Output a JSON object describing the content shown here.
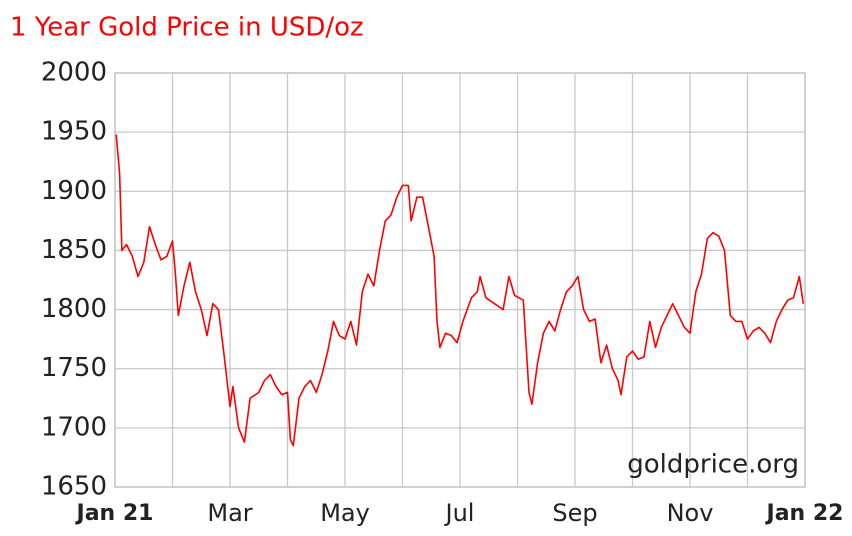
{
  "chart_data": {
    "type": "line",
    "title": "1 Year Gold Price in USD/oz",
    "watermark": "goldprice.org",
    "xlim": [
      0,
      12
    ],
    "xticks": [
      {
        "value": 0,
        "label": "Jan 21"
      },
      {
        "value": 1,
        "label": null
      },
      {
        "value": 2,
        "label": "Mar"
      },
      {
        "value": 3,
        "label": null
      },
      {
        "value": 4,
        "label": "May"
      },
      {
        "value": 5,
        "label": null
      },
      {
        "value": 6,
        "label": "Jul"
      },
      {
        "value": 7,
        "label": null
      },
      {
        "value": 8,
        "label": "Sep"
      },
      {
        "value": 9,
        "label": null
      },
      {
        "value": 10,
        "label": "Nov"
      },
      {
        "value": 11,
        "label": null
      },
      {
        "value": 12,
        "label": "Jan 22"
      }
    ],
    "ylim": [
      1650,
      2000
    ],
    "yticks": [
      1650,
      1700,
      1750,
      1800,
      1850,
      1900,
      1950,
      2000
    ],
    "grid": true,
    "series": [
      {
        "color": "#ff0000",
        "x": [
          0.02,
          0.08,
          0.12,
          0.2,
          0.3,
          0.4,
          0.5,
          0.6,
          0.7,
          0.8,
          0.9,
          1.0,
          1.05,
          1.1,
          1.2,
          1.3,
          1.4,
          1.5,
          1.6,
          1.7,
          1.8,
          1.9,
          2.0,
          2.05,
          2.15,
          2.25,
          2.35,
          2.5,
          2.6,
          2.7,
          2.8,
          2.9,
          3.0,
          3.05,
          3.1,
          3.2,
          3.3,
          3.4,
          3.5,
          3.6,
          3.7,
          3.8,
          3.9,
          4.0,
          4.1,
          4.2,
          4.3,
          4.4,
          4.5,
          4.6,
          4.7,
          4.8,
          4.9,
          5.0,
          5.1,
          5.15,
          5.25,
          5.35,
          5.45,
          5.55,
          5.6,
          5.65,
          5.75,
          5.85,
          5.95,
          6.05,
          6.2,
          6.3,
          6.35,
          6.45,
          6.6,
          6.75,
          6.85,
          6.95,
          7.1,
          7.2,
          7.25,
          7.35,
          7.45,
          7.55,
          7.65,
          7.75,
          7.85,
          7.95,
          8.05,
          8.15,
          8.25,
          8.35,
          8.45,
          8.55,
          8.65,
          8.75,
          8.8,
          8.9,
          9.0,
          9.1,
          9.2,
          9.3,
          9.4,
          9.5,
          9.6,
          9.7,
          9.8,
          9.9,
          10.0,
          10.1,
          10.2,
          10.3,
          10.4,
          10.5,
          10.6,
          10.7,
          10.8,
          10.9,
          11.0,
          11.1,
          11.2,
          11.3,
          11.4,
          11.5,
          11.6,
          11.7,
          11.8,
          11.9,
          11.97
        ],
        "values": [
          1948,
          1915,
          1850,
          1855,
          1845,
          1828,
          1840,
          1870,
          1855,
          1842,
          1845,
          1858,
          1830,
          1795,
          1820,
          1840,
          1815,
          1800,
          1778,
          1805,
          1800,
          1760,
          1718,
          1735,
          1700,
          1688,
          1725,
          1730,
          1740,
          1745,
          1735,
          1728,
          1730,
          1690,
          1685,
          1725,
          1735,
          1740,
          1730,
          1745,
          1765,
          1790,
          1778,
          1775,
          1790,
          1770,
          1815,
          1830,
          1820,
          1850,
          1875,
          1880,
          1895,
          1905,
          1905,
          1875,
          1895,
          1895,
          1870,
          1845,
          1790,
          1768,
          1780,
          1778,
          1772,
          1790,
          1810,
          1815,
          1828,
          1810,
          1805,
          1800,
          1828,
          1812,
          1808,
          1730,
          1720,
          1755,
          1780,
          1790,
          1782,
          1800,
          1815,
          1820,
          1828,
          1800,
          1790,
          1792,
          1755,
          1770,
          1750,
          1740,
          1728,
          1760,
          1765,
          1758,
          1760,
          1790,
          1768,
          1785,
          1795,
          1805,
          1795,
          1785,
          1780,
          1815,
          1830,
          1860,
          1865,
          1862,
          1850,
          1795,
          1790,
          1790,
          1775,
          1782,
          1785,
          1780,
          1772,
          1790,
          1800,
          1808,
          1810,
          1828,
          1805
        ]
      }
    ]
  }
}
